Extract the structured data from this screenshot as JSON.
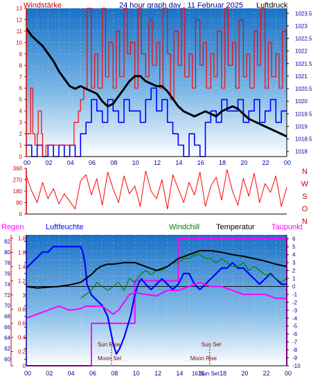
{
  "header": {
    "left_label": "Windstärke",
    "title": "24 hour graph day : 11 Februar 2025",
    "right_label": "Luftdruck"
  },
  "colors": {
    "plot_top": "#1a72c6",
    "plot_bottom": "#ffffff",
    "axis_red": "#cc0000",
    "axis_blue": "#000099",
    "wind": "#ff0000",
    "gust": "#0000ff",
    "pressure": "#000000",
    "direction": "#ff0000",
    "regen": "#ff00ff",
    "humidity": "#0000ff",
    "windchill": "#008000",
    "temperature": "#000000",
    "dewpoint": "#ff00ff"
  },
  "chart_data": [
    {
      "type": "line",
      "id": "wind_pressure",
      "x_ticks": [
        "00",
        "02",
        "04",
        "06",
        "08",
        "10",
        "12",
        "14",
        "16",
        "18",
        "20",
        "22",
        "00"
      ],
      "x_range_hours": [
        0,
        24
      ],
      "y_left": {
        "label": "Windstärke",
        "ticks": [
          0,
          1,
          2,
          3,
          4,
          5,
          6,
          7,
          8,
          9,
          10,
          11,
          12,
          13
        ],
        "range": [
          0,
          13
        ]
      },
      "y_right": {
        "label": "Luftdruck",
        "ticks": [
          "1018",
          "1018.5",
          "1019",
          "1019.5",
          "1020",
          "1020.5",
          "1021",
          "1021.5",
          "1022",
          "1022.5",
          "1023",
          "1023.5"
        ],
        "range": [
          1017.8,
          1023.7
        ]
      },
      "series": [
        {
          "name": "Luftdruck",
          "axis": "right",
          "x": [
            0,
            0.5,
            1,
            1.5,
            2,
            2.5,
            3,
            3.5,
            4,
            4.5,
            5,
            5.5,
            6,
            6.5,
            7,
            7.5,
            8,
            8.5,
            9,
            9.5,
            10,
            10.5,
            11,
            11.5,
            12,
            12.5,
            13,
            13.5,
            14,
            14.5,
            15,
            15.5,
            16,
            16.5,
            17,
            17.5,
            18,
            18.5,
            19,
            19.5,
            20,
            20.5,
            21,
            21.5,
            22,
            22.5,
            23,
            23.5,
            24
          ],
          "y": [
            1022.9,
            1022.6,
            1022.4,
            1022.2,
            1021.9,
            1021.6,
            1021.2,
            1020.9,
            1020.6,
            1020.5,
            1020.6,
            1020.5,
            1020.4,
            1020.3,
            1020.0,
            1019.8,
            1019.9,
            1020.2,
            1020.5,
            1020.8,
            1021.0,
            1021.0,
            1020.8,
            1020.7,
            1020.6,
            1020.6,
            1020.4,
            1020.1,
            1019.8,
            1019.6,
            1019.5,
            1019.4,
            1019.5,
            1019.6,
            1019.5,
            1019.4,
            1019.6,
            1019.7,
            1019.8,
            1019.7,
            1019.5,
            1019.3,
            1019.2,
            1019.1,
            1019.0,
            1018.9,
            1018.8,
            1018.7,
            1018.6
          ]
        },
        {
          "name": "wind_speed",
          "axis": "left",
          "x": [
            0,
            0.3,
            0.4,
            0.6,
            0.8,
            1.0,
            1.1,
            1.4,
            1.5,
            1.8,
            2.0,
            2.5,
            3.0,
            3.5,
            4.0,
            4.2,
            4.4,
            4.6,
            4.8,
            5.0,
            5.3,
            5.6,
            6.0,
            6.3,
            6.6,
            7.0,
            7.3,
            7.6,
            8.0,
            8.3,
            8.6,
            9.0,
            9.3,
            9.6,
            10.0,
            10.3,
            10.6,
            11.0,
            11.3,
            11.6,
            12.0,
            12.3,
            12.6,
            13.0,
            13.3,
            13.6,
            14.0,
            14.3,
            14.6,
            15.0,
            15.3,
            15.6,
            16.0,
            16.3,
            16.6,
            17.0,
            17.3,
            17.6,
            18.0,
            18.3,
            18.6,
            19.0,
            19.3,
            19.6,
            20.0,
            20.3,
            20.6,
            21.0,
            21.3,
            21.6,
            22.0,
            22.3,
            22.6,
            23.0,
            23.3,
            23.6,
            24.0
          ],
          "y": [
            2,
            2,
            6,
            2,
            1,
            2,
            4,
            2,
            0,
            1,
            1,
            1,
            1,
            1,
            1,
            1,
            3,
            3,
            4,
            5,
            6,
            13,
            6,
            9,
            6,
            13,
            7,
            10,
            6,
            11,
            7,
            13,
            9,
            10,
            6,
            13,
            9,
            7,
            12,
            8,
            10,
            6,
            13,
            9,
            5,
            11,
            8,
            13,
            7,
            9,
            6,
            12,
            8,
            10,
            6,
            9,
            7,
            11,
            6,
            13,
            8,
            10,
            6,
            12,
            7,
            9,
            6,
            11,
            8,
            13,
            6,
            10,
            7,
            9,
            6,
            11,
            8
          ]
        },
        {
          "name": "wind_gust",
          "axis": "left",
          "x": [
            0,
            0.5,
            1.0,
            1.5,
            2.0,
            2.5,
            3.0,
            3.5,
            4.0,
            4.5,
            5.0,
            5.5,
            6.0,
            6.5,
            7.0,
            7.5,
            8.0,
            8.5,
            9.0,
            9.5,
            10.0,
            10.5,
            11.0,
            11.5,
            12.0,
            12.5,
            13.0,
            13.5,
            14.0,
            14.5,
            15.0,
            15.5,
            16.0,
            16.5,
            17.0,
            17.5,
            18.0,
            18.5,
            19.0,
            19.5,
            20.0,
            20.5,
            21.0,
            21.5,
            22.0,
            22.5,
            23.0,
            23.5,
            24.0
          ],
          "y": [
            1,
            0,
            1,
            0,
            1,
            0,
            1,
            0,
            1,
            0,
            2,
            3,
            5,
            4,
            3,
            5,
            4,
            3,
            5,
            4,
            4,
            3,
            5,
            6,
            4,
            5,
            3,
            2,
            1,
            0,
            2,
            1,
            0,
            3,
            4,
            3,
            5,
            4,
            4,
            5,
            3,
            4,
            5,
            3,
            4,
            5,
            3,
            4,
            4
          ]
        }
      ]
    },
    {
      "type": "line",
      "id": "wind_direction",
      "x_range_hours": [
        0,
        24
      ],
      "y_left": {
        "ticks": [
          0,
          90,
          180,
          270,
          360
        ],
        "range": [
          0,
          360
        ]
      },
      "y_right": {
        "ticks": [
          "N",
          "W",
          "S",
          "O",
          "N"
        ]
      },
      "series": [
        {
          "name": "direction",
          "x": [
            0,
            0.5,
            1,
            1.5,
            2,
            2.5,
            3,
            3.5,
            4,
            4.5,
            5,
            5.5,
            6,
            6.5,
            7,
            7.5,
            8,
            8.5,
            9,
            9.5,
            10,
            10.5,
            11,
            11.5,
            12,
            12.5,
            13,
            13.5,
            14,
            14.5,
            15,
            15.5,
            16,
            16.5,
            17,
            17.5,
            18,
            18.5,
            19,
            19.5,
            20,
            20.5,
            21,
            21.5,
            22,
            22.5,
            23,
            23.5,
            24
          ],
          "y": [
            300,
            180,
            90,
            250,
            120,
            200,
            80,
            160,
            100,
            40,
            260,
            310,
            150,
            280,
            70,
            330,
            200,
            90,
            300,
            160,
            220,
            60,
            340,
            180,
            120,
            270,
            40,
            310,
            200,
            90,
            250,
            150,
            330,
            60,
            220,
            290,
            110,
            350,
            180,
            70,
            280,
            140,
            320,
            90,
            240,
            170,
            300,
            60,
            210
          ]
        }
      ]
    },
    {
      "type": "line",
      "id": "humidity_temperature",
      "x_ticks": [
        "00",
        "02",
        "04",
        "06",
        "08",
        "10",
        "12",
        "14",
        "16",
        "18",
        "20",
        "22",
        "00"
      ],
      "x_range_hours": [
        0,
        24
      ],
      "y_left_regen": {
        "label": "Regen",
        "ticks": [
          "0",
          "0.2",
          "0.4",
          "0.6",
          "0.8",
          "1",
          "1.2",
          "1.4",
          "1.6",
          "1.8"
        ],
        "range": [
          0,
          1.85
        ]
      },
      "y_left_humidity": {
        "label": "Luftfeuchte",
        "ticks": [
          60,
          62,
          64,
          66,
          68,
          70,
          72,
          74,
          76,
          78,
          80,
          82
        ],
        "range": [
          58.8,
          83.2
        ]
      },
      "y_right": {
        "label": "Temperatur",
        "ticks": [
          6,
          5,
          4,
          3,
          2,
          1,
          0,
          -1,
          -2,
          -3,
          -4,
          -5,
          -6,
          -7,
          -8,
          -9,
          -10
        ],
        "range": [
          -10,
          6.5
        ]
      },
      "legend": [
        "Windchill",
        "Temperatur",
        "Taupunkt"
      ],
      "series": [
        {
          "name": "Regen",
          "axis": "regen",
          "x": [
            0,
            5.9,
            6.0,
            9.9,
            10.0,
            13.9,
            14.0,
            23.8,
            24.0
          ],
          "y": [
            0,
            0,
            0.6,
            0.6,
            1.2,
            1.2,
            1.8,
            1.8,
            0
          ]
        },
        {
          "name": "Luftfeuchte",
          "axis": "humidity",
          "x": [
            0,
            0.5,
            1.0,
            1.5,
            2.0,
            2.5,
            3.0,
            3.5,
            4.0,
            4.5,
            5.0,
            5.2,
            5.4,
            5.6,
            6.0,
            6.5,
            7.0,
            7.5,
            8.0,
            8.3,
            8.6,
            9.0,
            9.3,
            9.6,
            10.0,
            10.3,
            10.6,
            11.0,
            11.5,
            12.0,
            12.5,
            13.0,
            13.5,
            14.0,
            14.5,
            15.0,
            15.5,
            16.0,
            16.5,
            17.0,
            17.5,
            18.0,
            18.5,
            19.0,
            19.5,
            20.0,
            20.5,
            21.0,
            21.5,
            22.0,
            22.5,
            23.0,
            23.5,
            24.0
          ],
          "y": [
            77,
            78,
            79,
            80,
            80,
            81,
            81,
            81,
            81,
            81,
            81,
            80,
            78,
            74,
            72,
            71,
            70,
            68,
            63,
            61,
            62,
            64,
            66,
            68,
            72,
            74,
            75,
            74,
            73,
            74,
            75,
            74,
            73,
            74,
            76,
            76,
            74,
            73,
            74,
            75,
            76,
            77,
            77,
            78,
            77,
            77,
            76,
            75,
            74,
            75,
            76,
            75,
            74,
            74
          ]
        },
        {
          "name": "Windchill",
          "axis": "temperature",
          "x": [
            5.0,
            5.5,
            6.0,
            6.5,
            7.0,
            7.5,
            8.0,
            8.5,
            9.0,
            9.5,
            10.0,
            10.5,
            11.0,
            11.5,
            12.0,
            12.5,
            13.0,
            13.5,
            14.0,
            14.5,
            15.0,
            15.5,
            16.0,
            16.5,
            17.0,
            17.5,
            18.0,
            18.5,
            19.0,
            19.5,
            20.0,
            20.5,
            21.0,
            21.5,
            22.0,
            22.5,
            23.0,
            23.5,
            24.0
          ],
          "y": [
            -1.5,
            -1.0,
            -0.5,
            0.5,
            0,
            -0.5,
            0,
            0.5,
            -0.5,
            1.0,
            0.5,
            1.5,
            2.0,
            1.5,
            2.0,
            2.0,
            2.5,
            3.0,
            3.0,
            3.5,
            3.5,
            4.0,
            4.0,
            3.5,
            3.5,
            3.0,
            3.5,
            3.0,
            2.5,
            2.5,
            3.0,
            2.0,
            2.5,
            2.0,
            1.5,
            1.5,
            1.0,
            0.5,
            1.0
          ]
        },
        {
          "name": "Temperatur",
          "axis": "temperature",
          "x": [
            0,
            1,
            2,
            3,
            4,
            5,
            6,
            6.5,
            7,
            7.5,
            8,
            8.5,
            9,
            9.5,
            10,
            11,
            12,
            13,
            14,
            15,
            16,
            17,
            18,
            19,
            20,
            21,
            22,
            23,
            24
          ],
          "y": [
            0,
            -0.2,
            -0.1,
            0,
            0.2,
            0.5,
            1.5,
            2.2,
            2.6,
            2.8,
            2.8,
            2.9,
            3.0,
            3.0,
            3.0,
            2.5,
            2.0,
            2.5,
            3.5,
            4.0,
            4.5,
            4.5,
            4.3,
            4.0,
            3.8,
            3.5,
            3.2,
            2.8,
            2.5
          ]
        },
        {
          "name": "Taupunkt",
          "axis": "temperature",
          "x": [
            0,
            1,
            2,
            3,
            4,
            5,
            5.5,
            6,
            7,
            7.5,
            8,
            8.5,
            9,
            9.5,
            10,
            11,
            12,
            13,
            14,
            15,
            16,
            17,
            18,
            19,
            20,
            21,
            22,
            23,
            24
          ],
          "y": [
            -4.0,
            -3.5,
            -3.0,
            -2.5,
            -3.0,
            -2.8,
            -2.5,
            -2.5,
            -2.5,
            -3.0,
            -3.5,
            -3.0,
            -2.0,
            -1.0,
            -0.8,
            -1.0,
            -1.2,
            -0.5,
            -0.5,
            0,
            0.5,
            0,
            0,
            -0.5,
            -1.0,
            -1.0,
            -1.0,
            -1.5,
            -1.5
          ]
        }
      ],
      "annotations": [
        {
          "text": "Sun Rise",
          "x_hours": 7.85
        },
        {
          "text": "Moon Set",
          "x_hours": 7.85
        },
        {
          "text": "Sun Set",
          "x_hours": 16.9
        },
        {
          "text": "Moon Rise",
          "x_hours": 16.9
        },
        {
          "text": "16 Sun Set",
          "x_hours": 16.0
        }
      ]
    }
  ]
}
